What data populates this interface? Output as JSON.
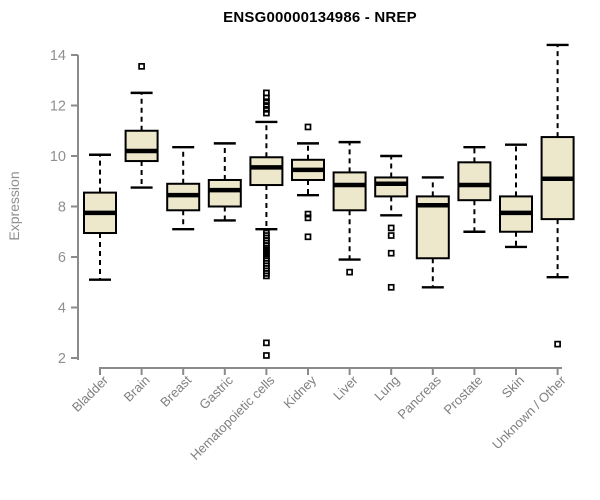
{
  "chart_data": {
    "type": "boxplot",
    "title": "ENSG00000134986 - NREP",
    "ylabel": "Expression",
    "xlabel": "",
    "ylim": [
      2,
      14
    ],
    "yticks": [
      2,
      4,
      6,
      8,
      10,
      12,
      14
    ],
    "grid": false,
    "legend": "none",
    "categories": [
      "Bladder",
      "Brain",
      "Breast",
      "Gastric",
      "Hematopoietic cells",
      "Kidney",
      "Liver",
      "Lung",
      "Pancreas",
      "Prostate",
      "Skin",
      "Unknown / Other"
    ],
    "series": [
      {
        "name": "Bladder",
        "whisker_low": 5.1,
        "q1": 6.95,
        "median": 7.75,
        "q3": 8.55,
        "whisker_high": 10.05,
        "outliers": []
      },
      {
        "name": "Brain",
        "whisker_low": 8.75,
        "q1": 9.8,
        "median": 10.2,
        "q3": 11.0,
        "whisker_high": 12.5,
        "outliers": [
          13.55
        ]
      },
      {
        "name": "Breast",
        "whisker_low": 7.1,
        "q1": 7.85,
        "median": 8.45,
        "q3": 8.9,
        "whisker_high": 10.35,
        "outliers": []
      },
      {
        "name": "Gastric",
        "whisker_low": 7.45,
        "q1": 8.0,
        "median": 8.65,
        "q3": 9.05,
        "whisker_high": 10.5,
        "outliers": []
      },
      {
        "name": "Hematopoietic cells",
        "whisker_low": 7.1,
        "q1": 8.85,
        "median": 9.55,
        "q3": 9.95,
        "whisker_high": 11.35,
        "outliers": [
          12.5,
          12.3,
          12.15,
          12.0,
          11.85,
          11.7,
          6.95,
          6.85,
          6.75,
          6.65,
          6.55,
          6.45,
          6.35,
          6.28,
          6.2,
          6.12,
          6.05,
          5.95,
          5.85,
          5.75,
          5.65,
          5.55,
          5.45,
          5.35,
          5.25,
          2.6,
          2.1
        ]
      },
      {
        "name": "Kidney",
        "whisker_low": 8.45,
        "q1": 9.05,
        "median": 9.45,
        "q3": 9.85,
        "whisker_high": 10.5,
        "outliers": [
          11.15,
          7.7,
          7.55,
          6.8
        ]
      },
      {
        "name": "Liver",
        "whisker_low": 5.9,
        "q1": 7.85,
        "median": 8.85,
        "q3": 9.35,
        "whisker_high": 10.55,
        "outliers": [
          5.4
        ]
      },
      {
        "name": "Lung",
        "whisker_low": 7.65,
        "q1": 8.4,
        "median": 8.9,
        "q3": 9.15,
        "whisker_high": 10.0,
        "outliers": [
          7.15,
          6.85,
          6.15,
          4.8
        ]
      },
      {
        "name": "Pancreas",
        "whisker_low": 4.8,
        "q1": 5.95,
        "median": 8.05,
        "q3": 8.4,
        "whisker_high": 9.15,
        "outliers": []
      },
      {
        "name": "Prostate",
        "whisker_low": 7.0,
        "q1": 8.25,
        "median": 8.85,
        "q3": 9.75,
        "whisker_high": 10.35,
        "outliers": []
      },
      {
        "name": "Skin",
        "whisker_low": 6.4,
        "q1": 7.0,
        "median": 7.75,
        "q3": 8.4,
        "whisker_high": 10.45,
        "outliers": []
      },
      {
        "name": "Unknown / Other",
        "whisker_low": 5.2,
        "q1": 7.5,
        "median": 9.1,
        "q3": 10.75,
        "whisker_high": 14.4,
        "outliers": [
          2.55
        ]
      }
    ],
    "colors": {
      "box_fill": "#EDE7CB",
      "box_border": "#000000",
      "median": "#000000",
      "whisker": "#000000",
      "axis": "#8a8a8a",
      "tick_label": "#8f8f8f",
      "category_label": "#7f7f7f",
      "title": "#000000",
      "background": "#FFFFFF"
    }
  }
}
